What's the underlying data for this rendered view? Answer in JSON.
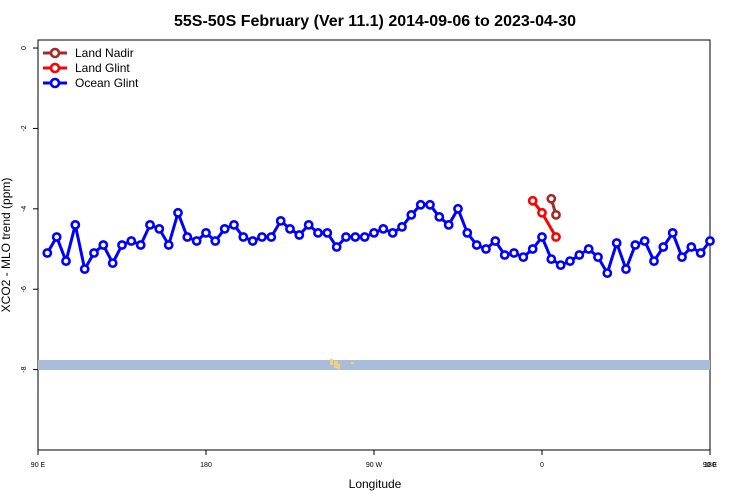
{
  "chart_data": {
    "type": "line",
    "title": "55S-50S February (Ver 11.1)   2014-09-06 to 2023-04-30",
    "xlabel": "Longitude",
    "ylabel": "XCO2 - MLO trend (ppm)",
    "xlim": [
      90,
      450
    ],
    "ylim": [
      -10,
      0.2
    ],
    "x_tick_values": [
      90,
      180,
      270,
      360,
      450,
      540
    ],
    "x_tick_labels": [
      "90 E",
      "180",
      "90 W",
      "0",
      "90 E",
      "180"
    ],
    "y_ticks": [
      0,
      -2,
      -4,
      -6,
      -8
    ],
    "y_tick_labels": [
      "0",
      "-2",
      "-4",
      "-6",
      "-8"
    ],
    "legend_position": "top-left",
    "grid": false,
    "series": [
      {
        "name": "Land Nadir",
        "color": "#a52a2a",
        "x": [
          365,
          367.5
        ],
        "y": [
          -3.75,
          -4.15
        ]
      },
      {
        "name": "Land Glint",
        "color": "#ff0000",
        "x": [
          355,
          360,
          367.5
        ],
        "y": [
          -3.8,
          -4.1,
          -4.7
        ]
      },
      {
        "name": "Ocean Glint",
        "color": "#0000ff",
        "x": [
          95,
          100,
          105,
          110,
          115,
          120,
          125,
          130,
          135,
          140,
          145,
          150,
          155,
          160,
          165,
          170,
          175,
          180,
          185,
          190,
          195,
          200,
          205,
          210,
          215,
          220,
          225,
          230,
          235,
          240,
          245,
          250,
          255,
          260,
          265,
          270,
          275,
          280,
          285,
          290,
          295,
          300,
          305,
          310,
          315,
          320,
          325,
          330,
          335,
          340,
          345,
          350,
          355,
          360,
          365,
          370,
          375,
          380,
          385,
          390,
          395,
          400,
          405,
          410,
          415,
          420,
          425,
          430,
          435,
          440,
          445,
          450
        ],
        "y": [
          -5.1,
          -4.7,
          -5.3,
          -4.4,
          -5.5,
          -5.1,
          -4.9,
          -5.35,
          -4.9,
          -4.8,
          -4.9,
          -4.4,
          -4.5,
          -4.9,
          -4.1,
          -4.7,
          -4.8,
          -4.6,
          -4.8,
          -4.5,
          -4.4,
          -4.7,
          -4.8,
          -4.7,
          -4.7,
          -4.3,
          -4.5,
          -4.65,
          -4.4,
          -4.6,
          -4.6,
          -4.95,
          -4.7,
          -4.7,
          -4.7,
          -4.6,
          -4.5,
          -4.6,
          -4.45,
          -4.15,
          -3.9,
          -3.9,
          -4.2,
          -4.4,
          -4.0,
          -4.6,
          -4.9,
          -5.0,
          -4.8,
          -5.15,
          -5.1,
          -5.2,
          -5.0,
          -4.7,
          -5.25,
          -5.4,
          -5.3,
          -5.15,
          -5.0,
          -5.2,
          -5.6,
          -4.85,
          -5.5,
          -4.9,
          -4.8,
          -5.3,
          -4.95,
          -4.6,
          -5.2,
          -4.95,
          -5.1,
          -4.8
        ]
      }
    ],
    "annotations": []
  }
}
